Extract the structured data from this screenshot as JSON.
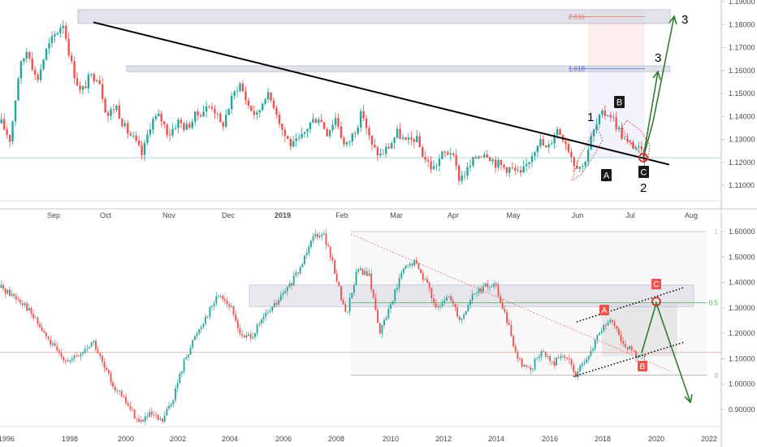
{
  "colors": {
    "up": "#26a69a",
    "down": "#ef5350",
    "trendline": "#000000",
    "projection": "#2e7d32",
    "zone": "#d9d9e3",
    "channel": "#000000",
    "fib_blue": "#5b6bd6",
    "fib_red": "#e57373",
    "fib_green": "#4caf50",
    "axis_text": "#4a4a4a"
  },
  "chart_data": [
    {
      "type": "candlestick",
      "panel": "top",
      "title": "",
      "x_ticks": [
        "Sep",
        "Oct",
        "Nov",
        "Dec",
        "2019",
        "Feb",
        "Mar",
        "Apr",
        "May",
        "Jun",
        "Jul",
        "Aug"
      ],
      "y_ticks": [
        "1.19000",
        "1.18000",
        "1.17000",
        "1.16000",
        "1.15000",
        "1.14000",
        "1.13000",
        "1.12000",
        "1.11000"
      ],
      "ylim": [
        1.105,
        1.1925
      ],
      "series": [
        {
          "price_path": [
            1.137,
            1.13,
            1.16,
            1.17,
            1.155,
            1.168,
            1.175,
            1.181,
            1.162,
            1.15,
            1.157,
            1.158,
            1.14,
            1.145,
            1.135,
            1.13,
            1.123,
            1.138,
            1.14,
            1.132,
            1.138,
            1.135,
            1.14,
            1.143,
            1.145,
            1.135,
            1.146,
            1.155,
            1.145,
            1.14,
            1.15,
            1.145,
            1.133,
            1.127,
            1.13,
            1.137,
            1.14,
            1.133,
            1.14,
            1.126,
            1.133,
            1.142,
            1.127,
            1.123,
            1.127,
            1.133,
            1.128,
            1.131,
            1.122,
            1.117,
            1.123,
            1.125,
            1.113,
            1.117,
            1.123,
            1.125,
            1.12,
            1.118,
            1.117,
            1.114,
            1.122,
            1.13,
            1.125,
            1.135,
            1.13,
            1.12,
            1.118,
            1.131,
            1.14,
            1.142,
            1.135,
            1.128,
            1.127,
            1.122
          ]
        }
      ],
      "zones": [
        {
          "label": "2.618",
          "value_low": 1.1805,
          "value_high": 1.1865
        },
        {
          "label": "1.618",
          "value_low": 1.1595,
          "value_high": 1.162
        }
      ],
      "trendline": {
        "from": [
          1.181,
          "Sep"
        ],
        "to": [
          1.119,
          "Jul"
        ]
      },
      "wave_labels": [
        "1",
        "2",
        "3",
        "3",
        "A",
        "B",
        "C"
      ],
      "current_price_line": 1.122
    },
    {
      "type": "candlestick",
      "panel": "bottom",
      "title": "",
      "x_ticks": [
        "1996",
        "1998",
        "2000",
        "2002",
        "2004",
        "2006",
        "2008",
        "2010",
        "2012",
        "2014",
        "2016",
        "2018",
        "2020",
        "2022"
      ],
      "y_ticks": [
        "1.60000",
        "1.50000",
        "1.40000",
        "1.30000",
        "1.20000",
        "1.10000",
        "1.00000",
        "0.90000"
      ],
      "ylim": [
        0.85,
        1.625
      ],
      "series": [
        {
          "price_path": [
            1.38,
            1.35,
            1.32,
            1.25,
            1.18,
            1.12,
            1.09,
            1.12,
            1.17,
            1.06,
            0.98,
            0.92,
            0.85,
            0.88,
            0.85,
            0.95,
            1.1,
            1.2,
            1.28,
            1.36,
            1.3,
            1.18,
            1.2,
            1.27,
            1.32,
            1.38,
            1.45,
            1.58,
            1.6,
            1.45,
            1.27,
            1.45,
            1.43,
            1.2,
            1.33,
            1.45,
            1.48,
            1.4,
            1.29,
            1.35,
            1.25,
            1.35,
            1.38,
            1.39,
            1.25,
            1.1,
            1.05,
            1.13,
            1.08,
            1.12,
            1.04,
            1.09,
            1.2,
            1.25,
            1.17,
            1.12,
            1.1
          ]
        }
      ],
      "zones": [
        {
          "label": "1",
          "value": 1.6
        },
        {
          "label": "0.5",
          "value": 1.32
        },
        {
          "label": "0",
          "value": 1.035
        }
      ],
      "wave_labels": [
        "A",
        "B",
        "C"
      ],
      "current_price_line": 1.125
    }
  ]
}
